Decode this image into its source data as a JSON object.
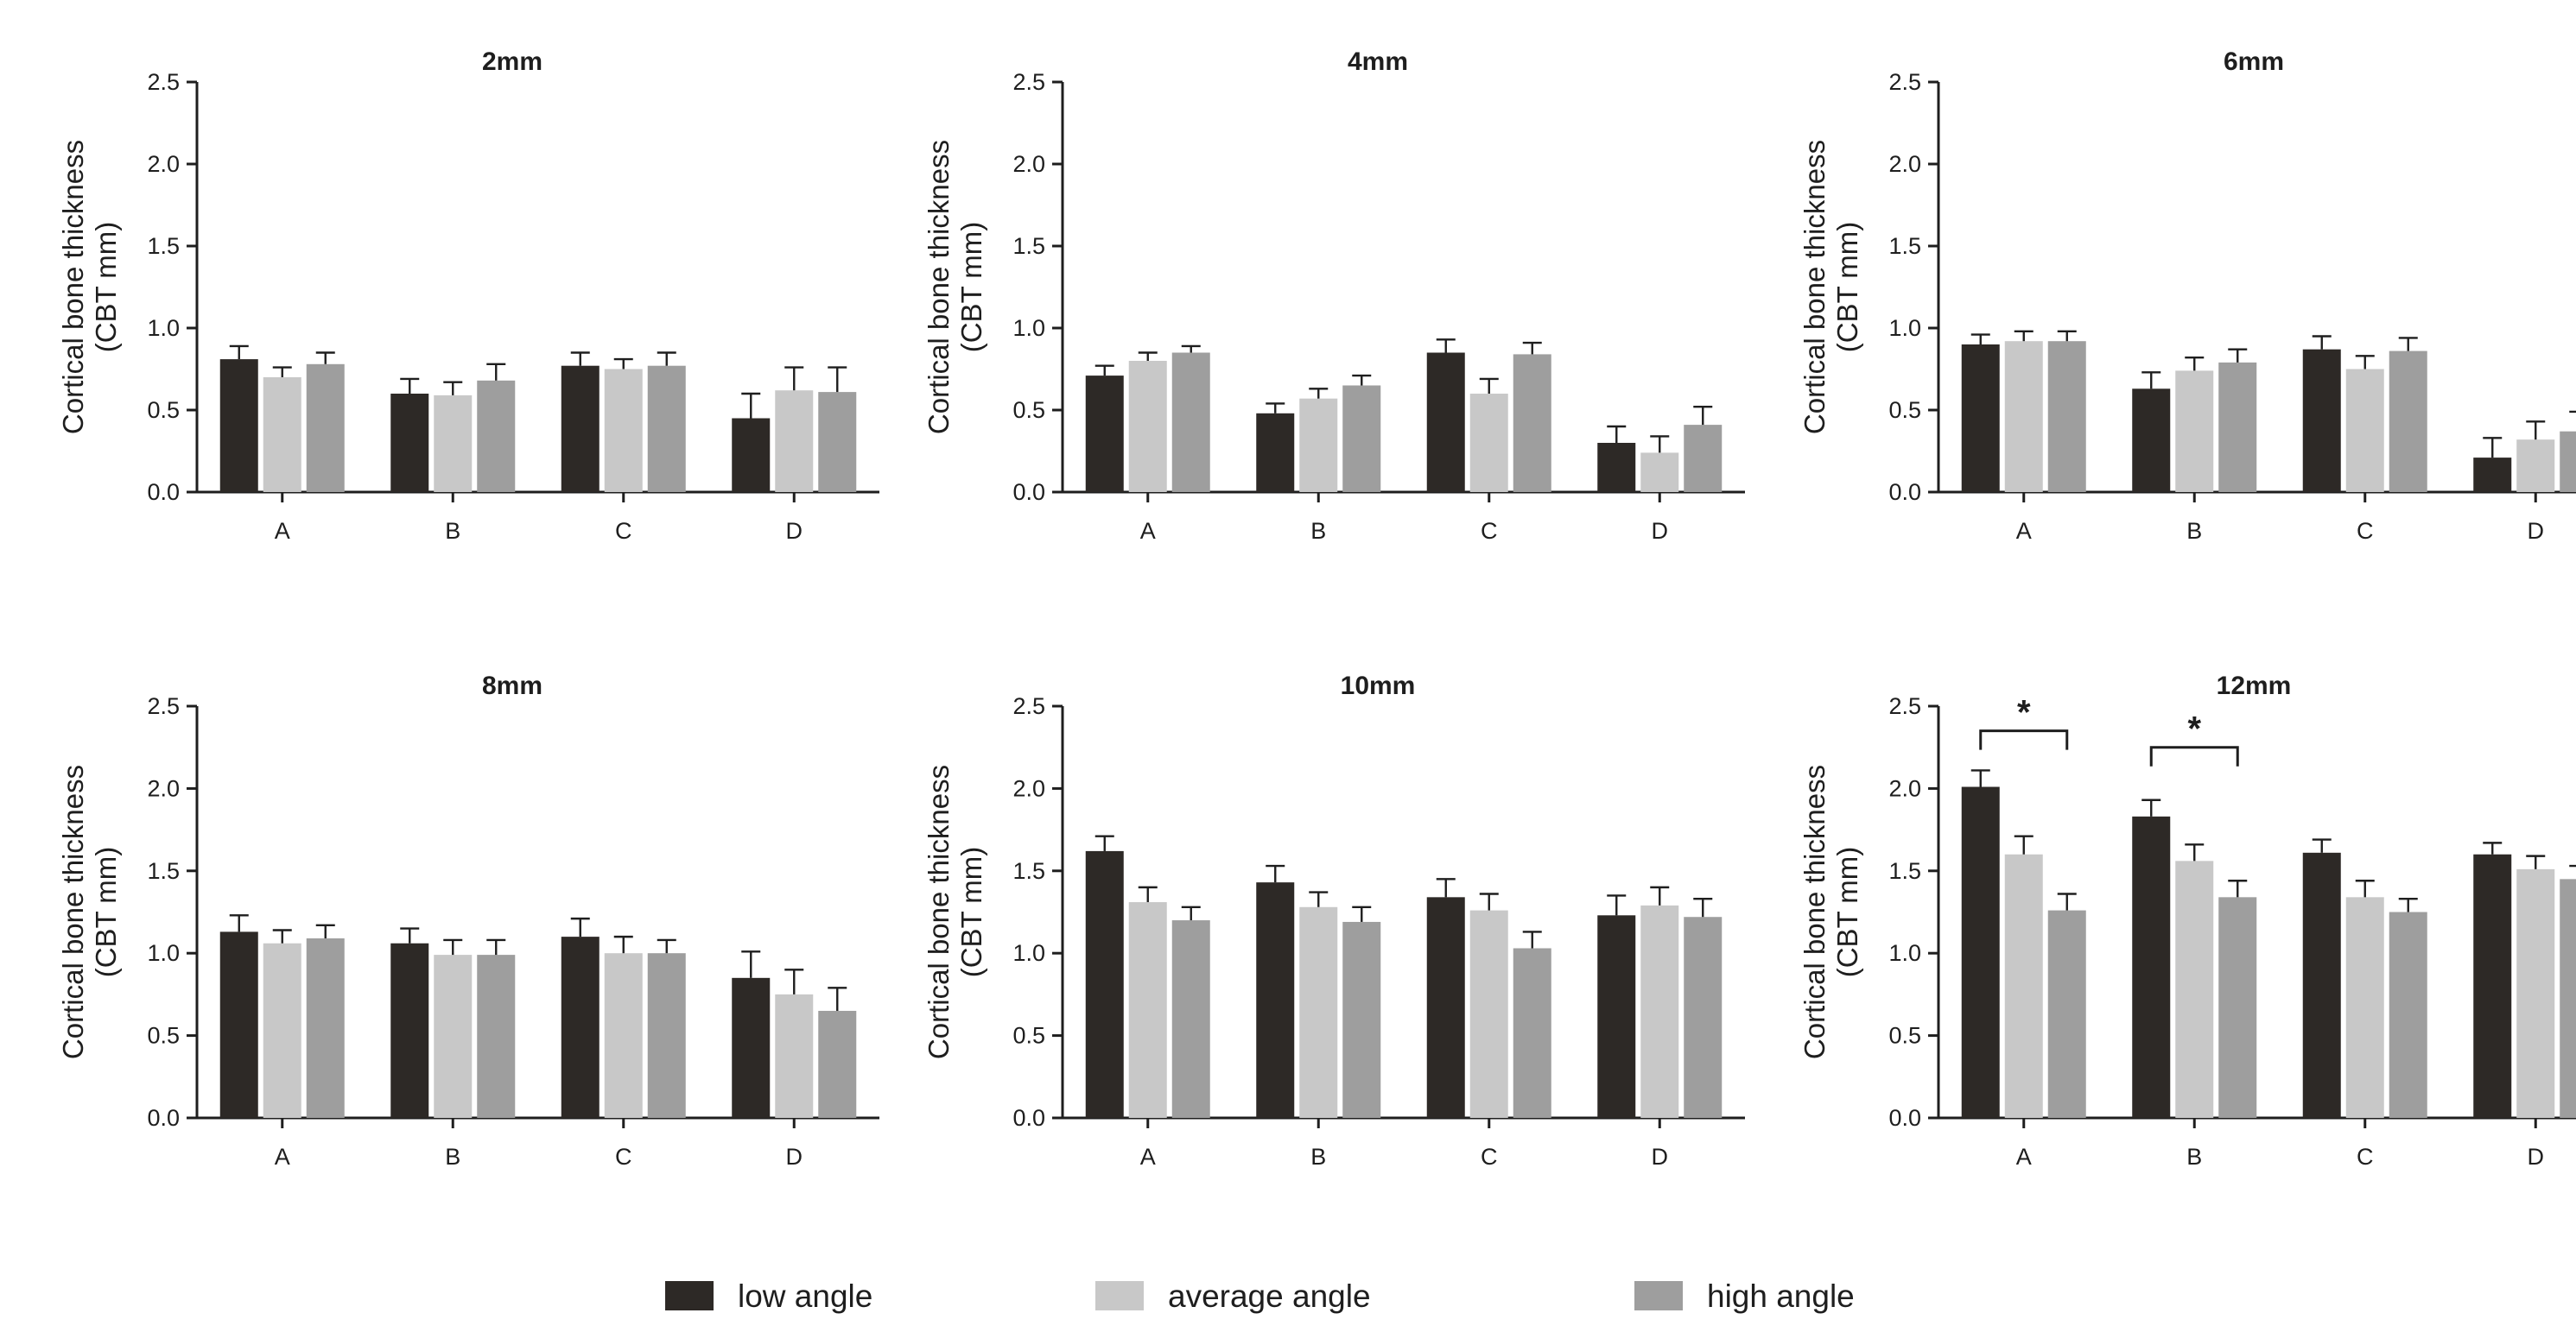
{
  "chart_data": [
    {
      "type": "bar",
      "title": "2mm",
      "categories": [
        "A",
        "B",
        "C",
        "D"
      ],
      "ylabel": [
        "Cortical bone thickness",
        "(CBT mm)"
      ],
      "ylim": [
        0,
        2.5
      ],
      "yticks": [
        "0.0",
        "0.5",
        "1.0",
        "1.5",
        "2.0",
        "2.5"
      ],
      "series": [
        {
          "name": "low angle",
          "values": [
            0.81,
            0.6,
            0.77,
            0.45
          ],
          "errors": [
            0.08,
            0.09,
            0.08,
            0.15
          ]
        },
        {
          "name": "average angle",
          "values": [
            0.7,
            0.59,
            0.75,
            0.62
          ],
          "errors": [
            0.06,
            0.08,
            0.06,
            0.14
          ]
        },
        {
          "name": "high angle",
          "values": [
            0.78,
            0.68,
            0.77,
            0.61
          ],
          "errors": [
            0.07,
            0.1,
            0.08,
            0.15
          ]
        }
      ],
      "significance": []
    },
    {
      "type": "bar",
      "title": "4mm",
      "categories": [
        "A",
        "B",
        "C",
        "D"
      ],
      "ylabel": [
        "Cortical bone thickness",
        "(CBT mm)"
      ],
      "ylim": [
        0,
        2.5
      ],
      "yticks": [
        "0.0",
        "0.5",
        "1.0",
        "1.5",
        "2.0",
        "2.5"
      ],
      "series": [
        {
          "name": "low angle",
          "values": [
            0.71,
            0.48,
            0.85,
            0.3
          ],
          "errors": [
            0.06,
            0.06,
            0.08,
            0.1
          ]
        },
        {
          "name": "average angle",
          "values": [
            0.8,
            0.57,
            0.6,
            0.24
          ],
          "errors": [
            0.05,
            0.06,
            0.09,
            0.1
          ]
        },
        {
          "name": "high angle",
          "values": [
            0.85,
            0.65,
            0.84,
            0.41
          ],
          "errors": [
            0.04,
            0.06,
            0.07,
            0.11
          ]
        }
      ],
      "significance": []
    },
    {
      "type": "bar",
      "title": "6mm",
      "categories": [
        "A",
        "B",
        "C",
        "D"
      ],
      "ylabel": [
        "Cortical bone thickness",
        "(CBT mm)"
      ],
      "ylim": [
        0,
        2.5
      ],
      "yticks": [
        "0.0",
        "0.5",
        "1.0",
        "1.5",
        "2.0",
        "2.5"
      ],
      "series": [
        {
          "name": "low angle",
          "values": [
            0.9,
            0.63,
            0.87,
            0.21
          ],
          "errors": [
            0.06,
            0.1,
            0.08,
            0.12
          ]
        },
        {
          "name": "average angle",
          "values": [
            0.92,
            0.74,
            0.75,
            0.32
          ],
          "errors": [
            0.06,
            0.08,
            0.08,
            0.11
          ]
        },
        {
          "name": "high angle",
          "values": [
            0.92,
            0.79,
            0.86,
            0.37
          ],
          "errors": [
            0.06,
            0.08,
            0.08,
            0.12
          ]
        }
      ],
      "significance": []
    },
    {
      "type": "bar",
      "title": "8mm",
      "categories": [
        "A",
        "B",
        "C",
        "D"
      ],
      "ylabel": [
        "Cortical bone thickness",
        "(CBT mm)"
      ],
      "ylim": [
        0,
        2.5
      ],
      "yticks": [
        "0.0",
        "0.5",
        "1.0",
        "1.5",
        "2.0",
        "2.5"
      ],
      "series": [
        {
          "name": "low angle",
          "values": [
            1.13,
            1.06,
            1.1,
            0.85
          ],
          "errors": [
            0.1,
            0.09,
            0.11,
            0.16
          ]
        },
        {
          "name": "average angle",
          "values": [
            1.06,
            0.99,
            1.0,
            0.75
          ],
          "errors": [
            0.08,
            0.09,
            0.1,
            0.15
          ]
        },
        {
          "name": "high angle",
          "values": [
            1.09,
            0.99,
            1.0,
            0.65
          ],
          "errors": [
            0.08,
            0.09,
            0.08,
            0.14
          ]
        }
      ],
      "significance": []
    },
    {
      "type": "bar",
      "title": "10mm",
      "categories": [
        "A",
        "B",
        "C",
        "D"
      ],
      "ylabel": [
        "Cortical bone thickness",
        "(CBT mm)"
      ],
      "ylim": [
        0,
        2.5
      ],
      "yticks": [
        "0.0",
        "0.5",
        "1.0",
        "1.5",
        "2.0",
        "2.5"
      ],
      "series": [
        {
          "name": "low angle",
          "values": [
            1.62,
            1.43,
            1.34,
            1.23
          ],
          "errors": [
            0.09,
            0.1,
            0.11,
            0.12
          ]
        },
        {
          "name": "average angle",
          "values": [
            1.31,
            1.28,
            1.26,
            1.29
          ],
          "errors": [
            0.09,
            0.09,
            0.1,
            0.11
          ]
        },
        {
          "name": "high angle",
          "values": [
            1.2,
            1.19,
            1.03,
            1.22
          ],
          "errors": [
            0.08,
            0.09,
            0.1,
            0.11
          ]
        }
      ],
      "significance": []
    },
    {
      "type": "bar",
      "title": "12mm",
      "categories": [
        "A",
        "B",
        "C",
        "D"
      ],
      "ylabel": [
        "Cortical bone thickness",
        "(CBT mm)"
      ],
      "ylim": [
        0,
        2.5
      ],
      "yticks": [
        "0.0",
        "0.5",
        "1.0",
        "1.5",
        "2.0",
        "2.5"
      ],
      "series": [
        {
          "name": "low angle",
          "values": [
            2.01,
            1.83,
            1.61,
            1.6
          ],
          "errors": [
            0.1,
            0.1,
            0.08,
            0.07
          ]
        },
        {
          "name": "average angle",
          "values": [
            1.6,
            1.56,
            1.34,
            1.51
          ],
          "errors": [
            0.11,
            0.1,
            0.1,
            0.08
          ]
        },
        {
          "name": "high angle",
          "values": [
            1.26,
            1.34,
            1.25,
            1.45
          ],
          "errors": [
            0.1,
            0.1,
            0.08,
            0.08
          ]
        }
      ],
      "significance": [
        {
          "category": "A",
          "from_series": 0,
          "to_series": 2,
          "y": 2.35,
          "label": "*"
        },
        {
          "category": "B",
          "from_series": 0,
          "to_series": 2,
          "y": 2.25,
          "label": "*"
        }
      ]
    }
  ],
  "legend": {
    "placement": "bottom",
    "items": [
      {
        "label": "low angle",
        "color": "#2d2926"
      },
      {
        "label": "average angle",
        "color": "#c8c8c8"
      },
      {
        "label": "high angle",
        "color": "#9e9e9e"
      }
    ]
  },
  "colors": {
    "low": "#2d2926",
    "average": "#c8c8c8",
    "high": "#9e9e9e",
    "axis": "#1e1e1e"
  }
}
